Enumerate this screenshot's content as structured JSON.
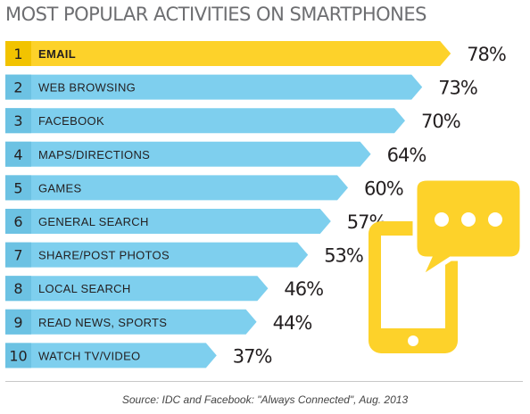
{
  "chart_data": {
    "type": "bar",
    "orientation": "horizontal",
    "title": "MOST POPULAR ACTIVITIES ON SMARTPHONES",
    "ranks": [
      "1",
      "2",
      "3",
      "4",
      "5",
      "6",
      "7",
      "8",
      "9",
      "10"
    ],
    "categories": [
      "EMAIL",
      "WEB BROWSING",
      "FACEBOOK",
      "MAPS/DIRECTIONS",
      "GAMES",
      "GENERAL SEARCH",
      "SHARE/POST PHOTOS",
      "LOCAL SEARCH",
      "READ NEWS, SPORTS",
      "WATCH TV/VIDEO"
    ],
    "values": [
      78,
      73,
      70,
      64,
      60,
      57,
      53,
      46,
      44,
      37
    ],
    "value_labels": [
      "78%",
      "73%",
      "70%",
      "64%",
      "60%",
      "57%",
      "53%",
      "46%",
      "44%",
      "37%"
    ],
    "highlight_index": 0,
    "colors": {
      "highlight": "#fdd22a",
      "bar": "#7ecfee",
      "rank_box_highlight": "#f2c300",
      "rank_box": "#6cc2e3",
      "phone": "#fdd22a",
      "text": "#231f20",
      "title": "#6d6e71"
    }
  },
  "source": "Source: IDC and Facebook: \"Always Connected\", Aug. 2013",
  "illustration": {
    "icon": "smartphone-chat-bubble-icon"
  }
}
